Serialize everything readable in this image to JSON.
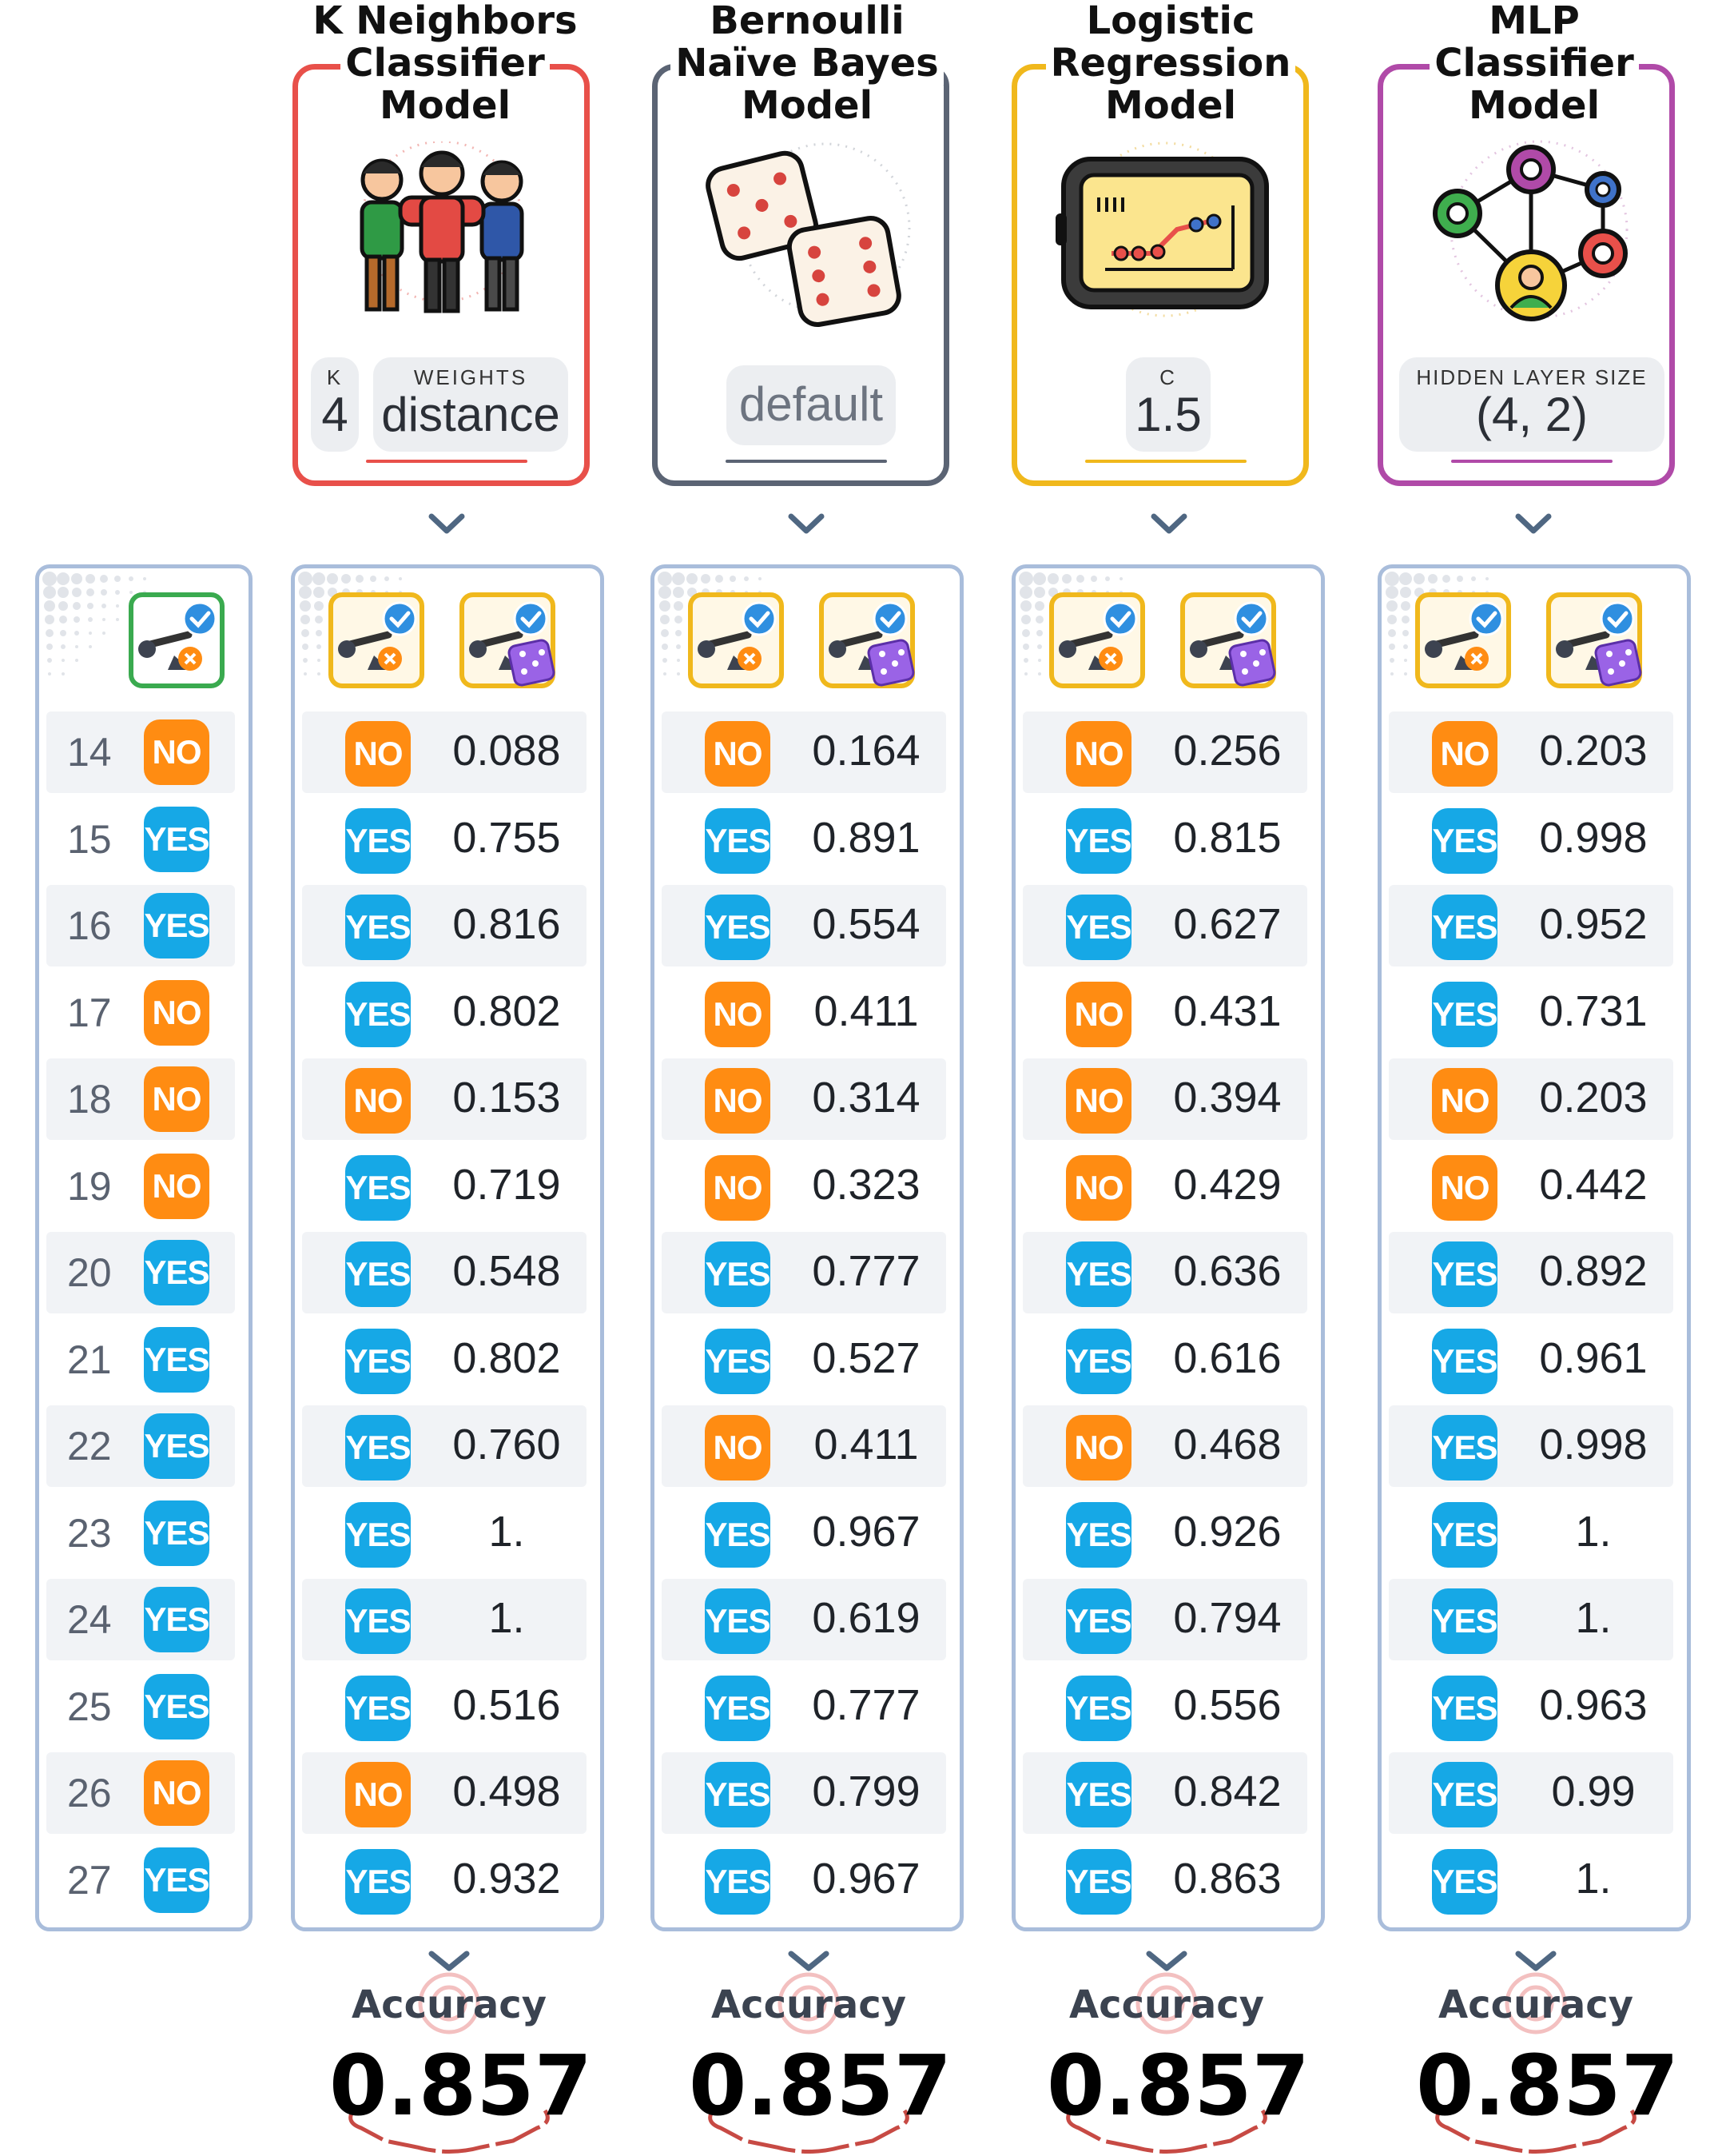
{
  "models": [
    {
      "title": [
        "K Neighbors",
        "Classifier",
        "Model"
      ],
      "color": "#e8504a",
      "params": [
        {
          "label": "K",
          "value": "4"
        },
        {
          "label": "WEIGHTS",
          "value": "distance"
        }
      ],
      "icon": "people-icon",
      "rows": [
        {
          "pred": "NO",
          "prob": "0.088"
        },
        {
          "pred": "YES",
          "prob": "0.755"
        },
        {
          "pred": "YES",
          "prob": "0.816"
        },
        {
          "pred": "YES",
          "prob": "0.802"
        },
        {
          "pred": "NO",
          "prob": "0.153"
        },
        {
          "pred": "YES",
          "prob": "0.719"
        },
        {
          "pred": "YES",
          "prob": "0.548"
        },
        {
          "pred": "YES",
          "prob": "0.802"
        },
        {
          "pred": "YES",
          "prob": "0.760"
        },
        {
          "pred": "YES",
          "prob": "1."
        },
        {
          "pred": "YES",
          "prob": "1."
        },
        {
          "pred": "YES",
          "prob": "0.516"
        },
        {
          "pred": "NO",
          "prob": "0.498"
        },
        {
          "pred": "YES",
          "prob": "0.932"
        }
      ],
      "accuracy_label": "Accuracy",
      "accuracy": "0.857"
    },
    {
      "title": [
        "Bernoulli",
        "Naïve Bayes",
        "Model"
      ],
      "color": "#5b6474",
      "params": [
        {
          "label": "",
          "value": "default"
        }
      ],
      "icon": "dice-icon",
      "rows": [
        {
          "pred": "NO",
          "prob": "0.164"
        },
        {
          "pred": "YES",
          "prob": "0.891"
        },
        {
          "pred": "YES",
          "prob": "0.554"
        },
        {
          "pred": "NO",
          "prob": "0.411"
        },
        {
          "pred": "NO",
          "prob": "0.314"
        },
        {
          "pred": "NO",
          "prob": "0.323"
        },
        {
          "pred": "YES",
          "prob": "0.777"
        },
        {
          "pred": "YES",
          "prob": "0.527"
        },
        {
          "pred": "NO",
          "prob": "0.411"
        },
        {
          "pred": "YES",
          "prob": "0.967"
        },
        {
          "pred": "YES",
          "prob": "0.619"
        },
        {
          "pred": "YES",
          "prob": "0.777"
        },
        {
          "pred": "YES",
          "prob": "0.799"
        },
        {
          "pred": "YES",
          "prob": "0.967"
        }
      ],
      "accuracy_label": "Accuracy",
      "accuracy": "0.857"
    },
    {
      "title": [
        "Logistic",
        "Regression",
        "Model"
      ],
      "color": "#f0b81c",
      "params": [
        {
          "label": "C",
          "value": "1.5"
        }
      ],
      "icon": "tablet-chart-icon",
      "rows": [
        {
          "pred": "NO",
          "prob": "0.256"
        },
        {
          "pred": "YES",
          "prob": "0.815"
        },
        {
          "pred": "YES",
          "prob": "0.627"
        },
        {
          "pred": "NO",
          "prob": "0.431"
        },
        {
          "pred": "NO",
          "prob": "0.394"
        },
        {
          "pred": "NO",
          "prob": "0.429"
        },
        {
          "pred": "YES",
          "prob": "0.636"
        },
        {
          "pred": "YES",
          "prob": "0.616"
        },
        {
          "pred": "NO",
          "prob": "0.468"
        },
        {
          "pred": "YES",
          "prob": "0.926"
        },
        {
          "pred": "YES",
          "prob": "0.794"
        },
        {
          "pred": "YES",
          "prob": "0.556"
        },
        {
          "pred": "YES",
          "prob": "0.842"
        },
        {
          "pred": "YES",
          "prob": "0.863"
        }
      ],
      "accuracy_label": "Accuracy",
      "accuracy": "0.857"
    },
    {
      "title": [
        "MLP",
        "Classifier",
        "Model"
      ],
      "color": "#b04aa8",
      "params": [
        {
          "label": "HIDDEN LAYER SIZE",
          "value": "(4, 2)"
        }
      ],
      "icon": "neural-network-icon",
      "rows": [
        {
          "pred": "NO",
          "prob": "0.203"
        },
        {
          "pred": "YES",
          "prob": "0.998"
        },
        {
          "pred": "YES",
          "prob": "0.952"
        },
        {
          "pred": "YES",
          "prob": "0.731"
        },
        {
          "pred": "NO",
          "prob": "0.203"
        },
        {
          "pred": "NO",
          "prob": "0.442"
        },
        {
          "pred": "YES",
          "prob": "0.892"
        },
        {
          "pred": "YES",
          "prob": "0.961"
        },
        {
          "pred": "YES",
          "prob": "0.998"
        },
        {
          "pred": "YES",
          "prob": "1."
        },
        {
          "pred": "YES",
          "prob": "1."
        },
        {
          "pred": "YES",
          "prob": "0.963"
        },
        {
          "pred": "YES",
          "prob": "0.99"
        },
        {
          "pred": "YES",
          "prob": "1."
        }
      ],
      "accuracy_label": "Accuracy",
      "accuracy": "0.857"
    }
  ],
  "actual": {
    "header_icon": "golf-target-check-icon",
    "rows": [
      {
        "id": "14",
        "label": "NO"
      },
      {
        "id": "15",
        "label": "YES"
      },
      {
        "id": "16",
        "label": "YES"
      },
      {
        "id": "17",
        "label": "NO"
      },
      {
        "id": "18",
        "label": "NO"
      },
      {
        "id": "19",
        "label": "NO"
      },
      {
        "id": "20",
        "label": "YES"
      },
      {
        "id": "21",
        "label": "YES"
      },
      {
        "id": "22",
        "label": "YES"
      },
      {
        "id": "23",
        "label": "YES"
      },
      {
        "id": "24",
        "label": "YES"
      },
      {
        "id": "25",
        "label": "YES"
      },
      {
        "id": "26",
        "label": "NO"
      },
      {
        "id": "27",
        "label": "YES"
      }
    ]
  },
  "colors": {
    "yes": "#16a8e6",
    "no": "#ff8c12",
    "panel_border": "#a9bddb",
    "row_alt": "#f1f3f6"
  }
}
